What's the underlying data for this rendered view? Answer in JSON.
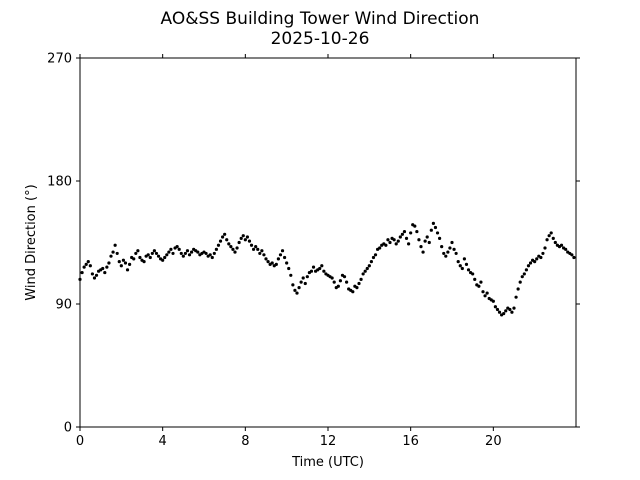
{
  "chart_data": {
    "type": "scatter",
    "title": "AO&SS Building Tower Wind Direction",
    "subtitle": "2025-10-26",
    "xlabel": "Time (UTC)",
    "ylabel": "Wind Direction (°)",
    "xlim": [
      0,
      24
    ],
    "ylim": [
      0,
      270
    ],
    "xticks": [
      0,
      4,
      8,
      12,
      16,
      20
    ],
    "yticks": [
      0,
      90,
      180,
      270
    ],
    "grid": false,
    "marker_color": "#000000",
    "series": [
      {
        "x": [
          0.0,
          0.1,
          0.2,
          0.3,
          0.4,
          0.5,
          0.6,
          0.7,
          0.8,
          0.9,
          1.0,
          1.1,
          1.2,
          1.3,
          1.4,
          1.5,
          1.6,
          1.7,
          1.8,
          1.9,
          2.0,
          2.1,
          2.2,
          2.3,
          2.4,
          2.5,
          2.6,
          2.7,
          2.8,
          2.9,
          3.0,
          3.1,
          3.2,
          3.3,
          3.4,
          3.5,
          3.6,
          3.7,
          3.8,
          3.9,
          4.0,
          4.1,
          4.2,
          4.3,
          4.4,
          4.5,
          4.6,
          4.7,
          4.8,
          4.9,
          5.0,
          5.1,
          5.2,
          5.3,
          5.4,
          5.5,
          5.6,
          5.7,
          5.8,
          5.9,
          6.0,
          6.1,
          6.2,
          6.3,
          6.4,
          6.5,
          6.6,
          6.7,
          6.8,
          6.9,
          7.0,
          7.1,
          7.2,
          7.3,
          7.4,
          7.5,
          7.6,
          7.7,
          7.8,
          7.9,
          8.0,
          8.1,
          8.2,
          8.3,
          8.4,
          8.5,
          8.6,
          8.7,
          8.8,
          8.9,
          9.0,
          9.1,
          9.2,
          9.3,
          9.4,
          9.5,
          9.6,
          9.7,
          9.8,
          9.9,
          10.0,
          10.1,
          10.2,
          10.3,
          10.4,
          10.5,
          10.6,
          10.7,
          10.8,
          10.9,
          11.0,
          11.1,
          11.2,
          11.3,
          11.4,
          11.5,
          11.6,
          11.7,
          11.8,
          11.9,
          12.0,
          12.1,
          12.2,
          12.3,
          12.4,
          12.5,
          12.6,
          12.7,
          12.8,
          12.9,
          13.0,
          13.1,
          13.2,
          13.3,
          13.4,
          13.5,
          13.6,
          13.7,
          13.8,
          13.9,
          14.0,
          14.1,
          14.2,
          14.3,
          14.4,
          14.5,
          14.6,
          14.7,
          14.8,
          14.9,
          15.0,
          15.1,
          15.2,
          15.3,
          15.4,
          15.5,
          15.6,
          15.7,
          15.8,
          15.9,
          16.0,
          16.1,
          16.2,
          16.3,
          16.4,
          16.5,
          16.6,
          16.7,
          16.8,
          16.9,
          17.0,
          17.1,
          17.2,
          17.3,
          17.4,
          17.5,
          17.6,
          17.7,
          17.8,
          17.9,
          18.0,
          18.1,
          18.2,
          18.3,
          18.4,
          18.5,
          18.6,
          18.7,
          18.8,
          18.9,
          19.0,
          19.1,
          19.2,
          19.3,
          19.4,
          19.5,
          19.6,
          19.7,
          19.8,
          19.9,
          20.0,
          20.1,
          20.2,
          20.3,
          20.4,
          20.5,
          20.6,
          20.7,
          20.8,
          20.9,
          21.0,
          21.1,
          21.2,
          21.3,
          21.4,
          21.5,
          21.6,
          21.7,
          21.8,
          21.9,
          22.0,
          22.1,
          22.2,
          22.3,
          22.4,
          22.5,
          22.6,
          22.7,
          22.8,
          22.9,
          23.0,
          23.1,
          23.2,
          23.3,
          23.4,
          23.5,
          23.6,
          23.7,
          23.8,
          23.9
        ],
        "y": [
          108,
          113,
          117,
          119,
          121,
          118,
          112,
          109,
          111,
          114,
          115,
          116,
          113,
          117,
          120,
          125,
          128,
          133,
          127,
          121,
          118,
          122,
          120,
          115,
          119,
          124,
          123,
          127,
          129,
          124,
          122,
          121,
          125,
          126,
          124,
          127,
          129,
          127,
          125,
          123,
          122,
          124,
          126,
          128,
          130,
          127,
          131,
          132,
          130,
          127,
          125,
          127,
          129,
          126,
          128,
          130,
          129,
          128,
          126,
          127,
          128,
          127,
          125,
          126,
          124,
          127,
          130,
          133,
          136,
          139,
          141,
          137,
          134,
          132,
          130,
          128,
          131,
          135,
          138,
          140,
          137,
          139,
          136,
          133,
          130,
          132,
          130,
          127,
          129,
          126,
          123,
          121,
          119,
          120,
          118,
          119,
          123,
          126,
          129,
          124,
          120,
          116,
          111,
          104,
          100,
          98,
          102,
          106,
          109,
          105,
          110,
          113,
          114,
          117,
          114,
          115,
          116,
          118,
          114,
          112,
          111,
          110,
          109,
          106,
          102,
          103,
          107,
          111,
          110,
          106,
          101,
          100,
          99,
          103,
          102,
          105,
          108,
          112,
          114,
          116,
          118,
          121,
          124,
          126,
          130,
          131,
          133,
          134,
          133,
          137,
          135,
          138,
          137,
          134,
          136,
          139,
          141,
          143,
          138,
          134,
          142,
          148,
          147,
          143,
          137,
          132,
          128,
          136,
          139,
          135,
          144,
          149,
          146,
          142,
          138,
          132,
          127,
          125,
          128,
          131,
          135,
          130,
          127,
          121,
          118,
          116,
          123,
          119,
          115,
          113,
          112,
          108,
          104,
          103,
          106,
          99,
          96,
          98,
          94,
          93,
          92,
          88,
          86,
          84,
          82,
          83,
          85,
          87,
          86,
          84,
          87,
          95,
          101,
          106,
          110,
          112,
          115,
          118,
          120,
          122,
          121,
          123,
          125,
          124,
          127,
          131,
          137,
          140,
          142,
          138,
          135,
          133,
          132,
          133,
          131,
          130,
          128,
          127,
          126,
          124
        ]
      }
    ]
  }
}
